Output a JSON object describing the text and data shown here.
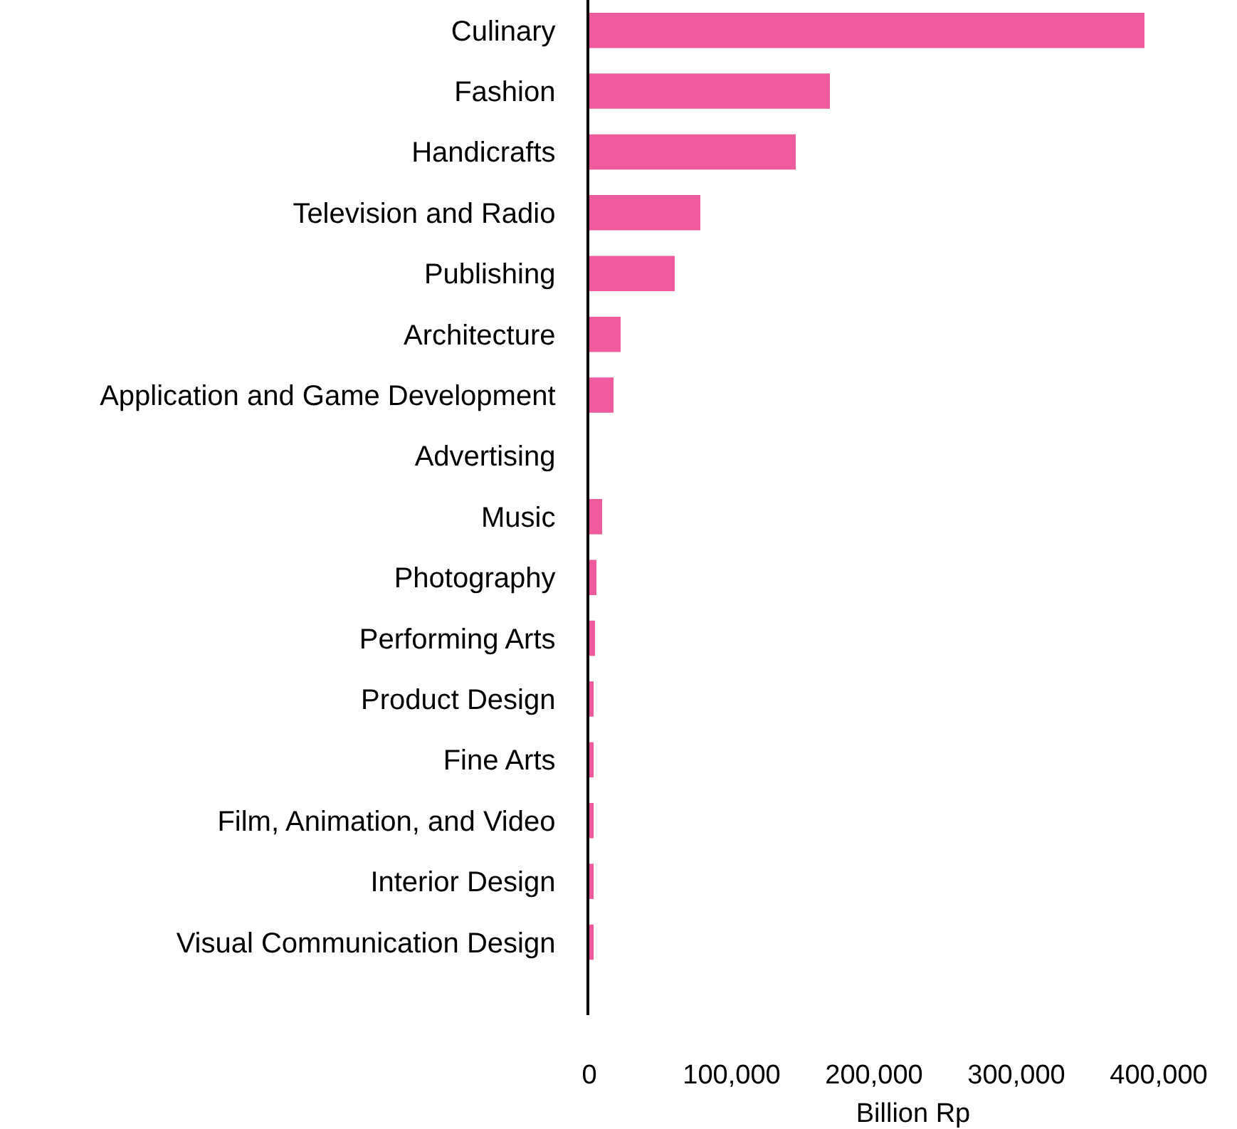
{
  "chart_data": {
    "type": "bar",
    "orientation": "horizontal",
    "xlabel": "Billion Rp",
    "categories": [
      "Culinary",
      "Fashion",
      "Handicrafts",
      "Television and Radio",
      "Publishing",
      "Architecture",
      "Application and Game Development",
      "Advertising",
      "Music",
      "Photography",
      "Performing Arts",
      "Product Design",
      "Fine Arts",
      "Film, Animation, and Video",
      "Interior Design",
      "Visual Communication Design"
    ],
    "values": [
      390000,
      169000,
      145000,
      78000,
      60000,
      22000,
      17000,
      null,
      9000,
      5000,
      4000,
      3000,
      3000,
      3000,
      3000,
      3000
    ],
    "color": "#ef5a9d",
    "xlim": [
      0,
      455000
    ],
    "xticks": [
      0,
      {
        "value": 100000,
        "label": "100,000"
      },
      {
        "value": 200000,
        "label": "200,000"
      },
      {
        "value": 300000,
        "label": "300,000"
      },
      {
        "value": 400000,
        "label": "400,000"
      }
    ]
  }
}
